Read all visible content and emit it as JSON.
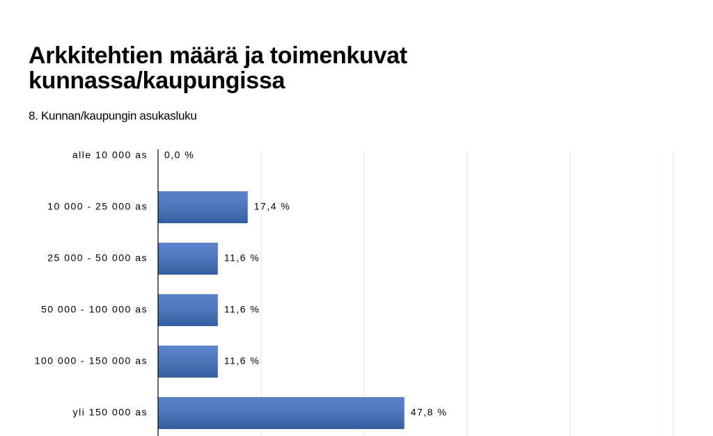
{
  "chart_data": {
    "type": "bar",
    "orientation": "horizontal",
    "title": "Arkkitehtien määrä ja toimenkuvat kunnassa/kaupungissa",
    "subtitle": "8. Kunnan/kaupungin asukasluku",
    "categories": [
      "alle 10 000 as",
      "10 000 - 25 000 as",
      "25 000 - 50 000 as",
      "50 000 - 100 000 as",
      "100 000 - 150 000 as",
      "yli 150 000 as"
    ],
    "values": [
      0.0,
      17.4,
      11.6,
      11.6,
      11.6,
      47.8
    ],
    "value_labels": [
      "0,0 %",
      "17,4 %",
      "11,6 %",
      "11,6 %",
      "11,6 %",
      "47,8 %"
    ],
    "color": "#4472c4",
    "xlim": [
      0,
      100
    ],
    "xticks": [
      0,
      20,
      40,
      60,
      80,
      100
    ],
    "grid": true
  }
}
